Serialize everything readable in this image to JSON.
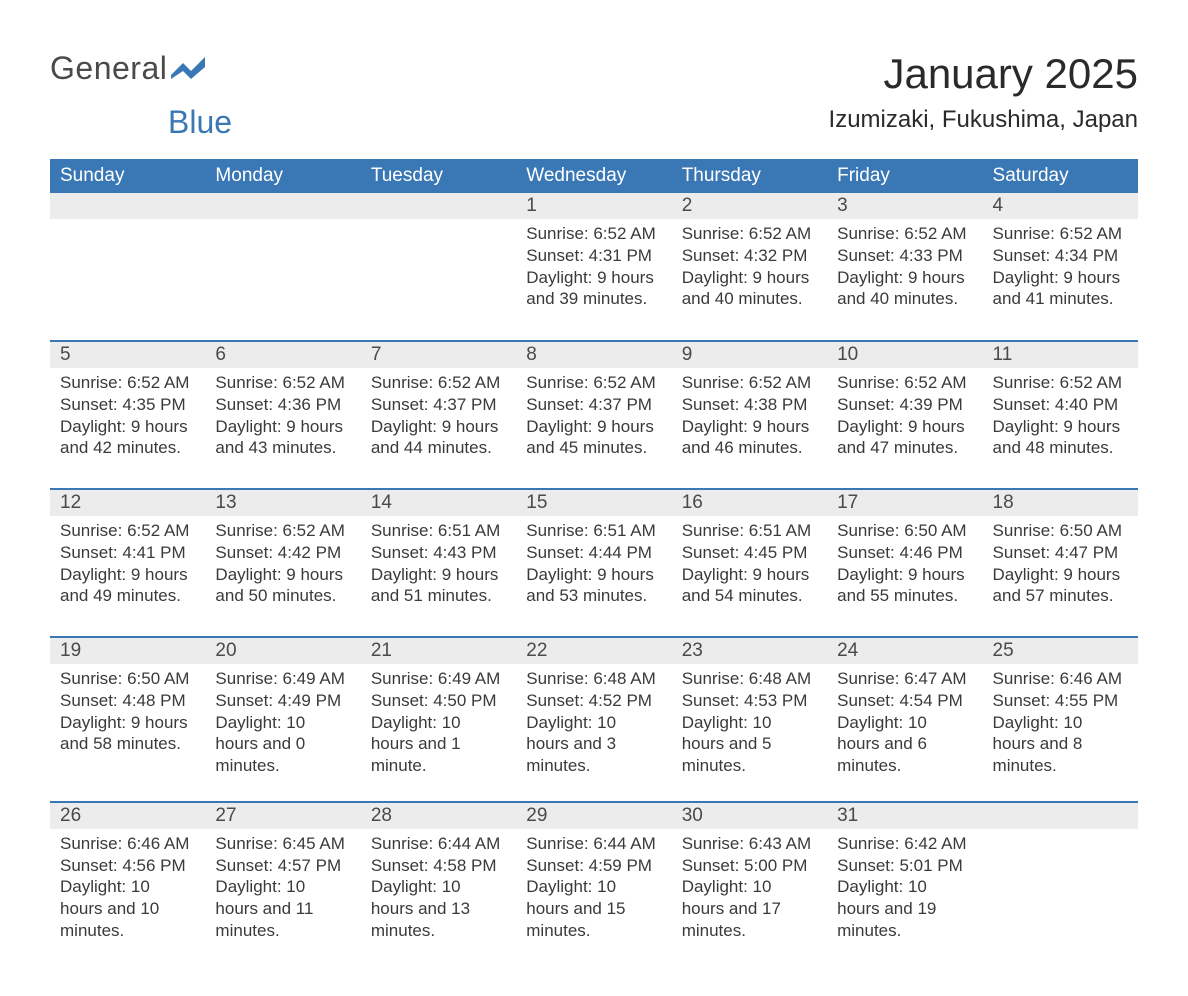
{
  "brand": {
    "part1": "General",
    "part2": "Blue"
  },
  "title": "January 2025",
  "location": "Izumizaki, Fukushima, Japan",
  "colors": {
    "header_bg": "#3a78b5",
    "header_text": "#ffffff",
    "daynum_bg": "#ececec",
    "rule": "#3a78b5",
    "body_text": "#3a3a3a",
    "page_bg": "#ffffff"
  },
  "columns": [
    "Sunday",
    "Monday",
    "Tuesday",
    "Wednesday",
    "Thursday",
    "Friday",
    "Saturday"
  ],
  "weeks": [
    [
      null,
      null,
      null,
      {
        "day": "1",
        "sunrise": "6:52 AM",
        "sunset": "4:31 PM",
        "daylight": "9 hours and 39 minutes."
      },
      {
        "day": "2",
        "sunrise": "6:52 AM",
        "sunset": "4:32 PM",
        "daylight": "9 hours and 40 minutes."
      },
      {
        "day": "3",
        "sunrise": "6:52 AM",
        "sunset": "4:33 PM",
        "daylight": "9 hours and 40 minutes."
      },
      {
        "day": "4",
        "sunrise": "6:52 AM",
        "sunset": "4:34 PM",
        "daylight": "9 hours and 41 minutes."
      }
    ],
    [
      {
        "day": "5",
        "sunrise": "6:52 AM",
        "sunset": "4:35 PM",
        "daylight": "9 hours and 42 minutes."
      },
      {
        "day": "6",
        "sunrise": "6:52 AM",
        "sunset": "4:36 PM",
        "daylight": "9 hours and 43 minutes."
      },
      {
        "day": "7",
        "sunrise": "6:52 AM",
        "sunset": "4:37 PM",
        "daylight": "9 hours and 44 minutes."
      },
      {
        "day": "8",
        "sunrise": "6:52 AM",
        "sunset": "4:37 PM",
        "daylight": "9 hours and 45 minutes."
      },
      {
        "day": "9",
        "sunrise": "6:52 AM",
        "sunset": "4:38 PM",
        "daylight": "9 hours and 46 minutes."
      },
      {
        "day": "10",
        "sunrise": "6:52 AM",
        "sunset": "4:39 PM",
        "daylight": "9 hours and 47 minutes."
      },
      {
        "day": "11",
        "sunrise": "6:52 AM",
        "sunset": "4:40 PM",
        "daylight": "9 hours and 48 minutes."
      }
    ],
    [
      {
        "day": "12",
        "sunrise": "6:52 AM",
        "sunset": "4:41 PM",
        "daylight": "9 hours and 49 minutes."
      },
      {
        "day": "13",
        "sunrise": "6:52 AM",
        "sunset": "4:42 PM",
        "daylight": "9 hours and 50 minutes."
      },
      {
        "day": "14",
        "sunrise": "6:51 AM",
        "sunset": "4:43 PM",
        "daylight": "9 hours and 51 minutes."
      },
      {
        "day": "15",
        "sunrise": "6:51 AM",
        "sunset": "4:44 PM",
        "daylight": "9 hours and 53 minutes."
      },
      {
        "day": "16",
        "sunrise": "6:51 AM",
        "sunset": "4:45 PM",
        "daylight": "9 hours and 54 minutes."
      },
      {
        "day": "17",
        "sunrise": "6:50 AM",
        "sunset": "4:46 PM",
        "daylight": "9 hours and 55 minutes."
      },
      {
        "day": "18",
        "sunrise": "6:50 AM",
        "sunset": "4:47 PM",
        "daylight": "9 hours and 57 minutes."
      }
    ],
    [
      {
        "day": "19",
        "sunrise": "6:50 AM",
        "sunset": "4:48 PM",
        "daylight": "9 hours and 58 minutes."
      },
      {
        "day": "20",
        "sunrise": "6:49 AM",
        "sunset": "4:49 PM",
        "daylight": "10 hours and 0 minutes."
      },
      {
        "day": "21",
        "sunrise": "6:49 AM",
        "sunset": "4:50 PM",
        "daylight": "10 hours and 1 minute."
      },
      {
        "day": "22",
        "sunrise": "6:48 AM",
        "sunset": "4:52 PM",
        "daylight": "10 hours and 3 minutes."
      },
      {
        "day": "23",
        "sunrise": "6:48 AM",
        "sunset": "4:53 PM",
        "daylight": "10 hours and 5 minutes."
      },
      {
        "day": "24",
        "sunrise": "6:47 AM",
        "sunset": "4:54 PM",
        "daylight": "10 hours and 6 minutes."
      },
      {
        "day": "25",
        "sunrise": "6:46 AM",
        "sunset": "4:55 PM",
        "daylight": "10 hours and 8 minutes."
      }
    ],
    [
      {
        "day": "26",
        "sunrise": "6:46 AM",
        "sunset": "4:56 PM",
        "daylight": "10 hours and 10 minutes."
      },
      {
        "day": "27",
        "sunrise": "6:45 AM",
        "sunset": "4:57 PM",
        "daylight": "10 hours and 11 minutes."
      },
      {
        "day": "28",
        "sunrise": "6:44 AM",
        "sunset": "4:58 PM",
        "daylight": "10 hours and 13 minutes."
      },
      {
        "day": "29",
        "sunrise": "6:44 AM",
        "sunset": "4:59 PM",
        "daylight": "10 hours and 15 minutes."
      },
      {
        "day": "30",
        "sunrise": "6:43 AM",
        "sunset": "5:00 PM",
        "daylight": "10 hours and 17 minutes."
      },
      {
        "day": "31",
        "sunrise": "6:42 AM",
        "sunset": "5:01 PM",
        "daylight": "10 hours and 19 minutes."
      },
      null
    ]
  ],
  "labels": {
    "sunrise": "Sunrise:",
    "sunset": "Sunset:",
    "daylight": "Daylight:"
  }
}
